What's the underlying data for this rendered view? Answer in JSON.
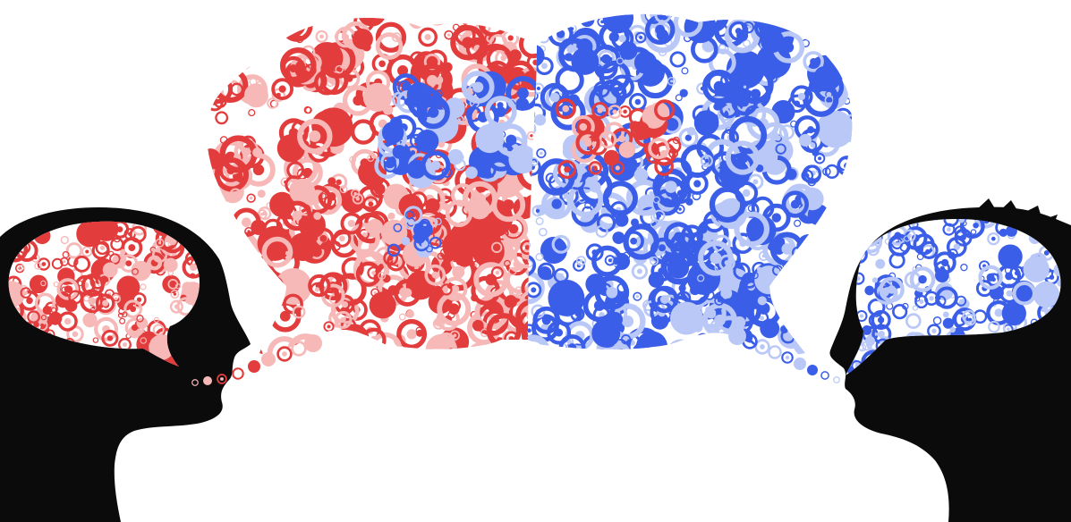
{
  "colors": {
    "background": "#ffffff",
    "silhouette": "#0b0b0b",
    "left_speaker_thought": "#e23c3c",
    "left_speaker_thought_light": "#f7b8b8",
    "right_speaker_thought": "#3b5ee8",
    "right_speaker_thought_light": "#b9c8f7"
  },
  "figures": [
    {
      "role": "left-speaker",
      "facing": "right",
      "thought_color": "red"
    },
    {
      "role": "right-speaker",
      "facing": "left",
      "thought_color": "blue"
    }
  ],
  "icons": [
    "head-silhouette-icon",
    "speech-bubble-icon",
    "circle-pattern-icon"
  ]
}
